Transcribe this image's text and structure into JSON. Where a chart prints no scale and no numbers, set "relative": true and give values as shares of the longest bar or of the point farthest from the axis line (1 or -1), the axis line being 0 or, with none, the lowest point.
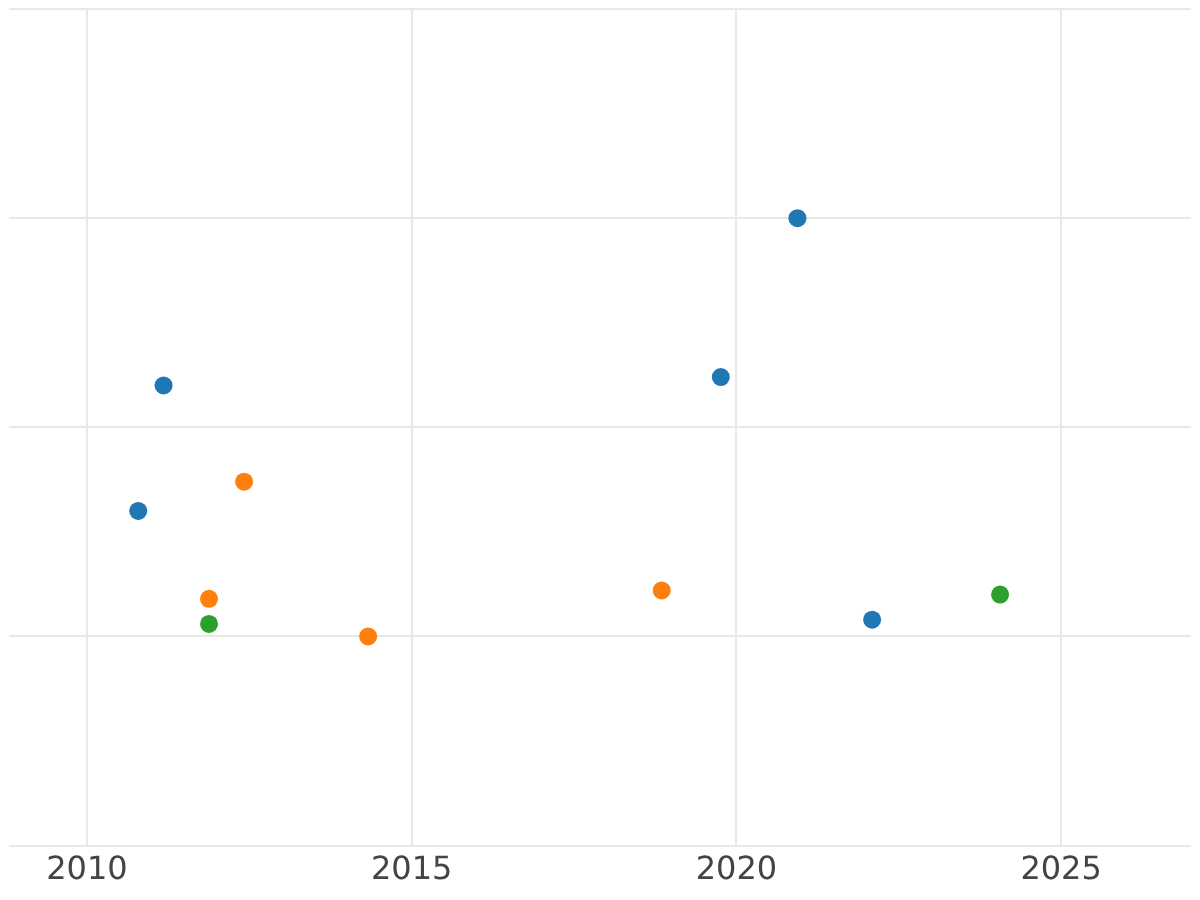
{
  "chart_data": {
    "type": "scatter",
    "relative": true,
    "xlim": [
      2008.8,
      2027
    ],
    "xticks": [
      2010,
      2015,
      2020,
      2025
    ],
    "grid": true,
    "legend": false,
    "marker": "circle",
    "series": [
      {
        "color": "#1f77b4",
        "x": [
          2020.94,
          2011.18,
          2019.76,
          2010.79,
          2022.09
        ],
        "values": [
          1,
          0.6,
          0.62,
          0.3,
          0.04
        ]
      },
      {
        "color": "#ff7f0e",
        "x": [
          2012.42,
          2011.88,
          2014.33,
          2018.85
        ],
        "values": [
          0.37,
          0.09,
          0,
          0.11
        ]
      },
      {
        "color": "#2ca02c",
        "x": [
          2011.88,
          2024.06
        ],
        "values": [
          0.03,
          0.1
        ]
      }
    ]
  }
}
